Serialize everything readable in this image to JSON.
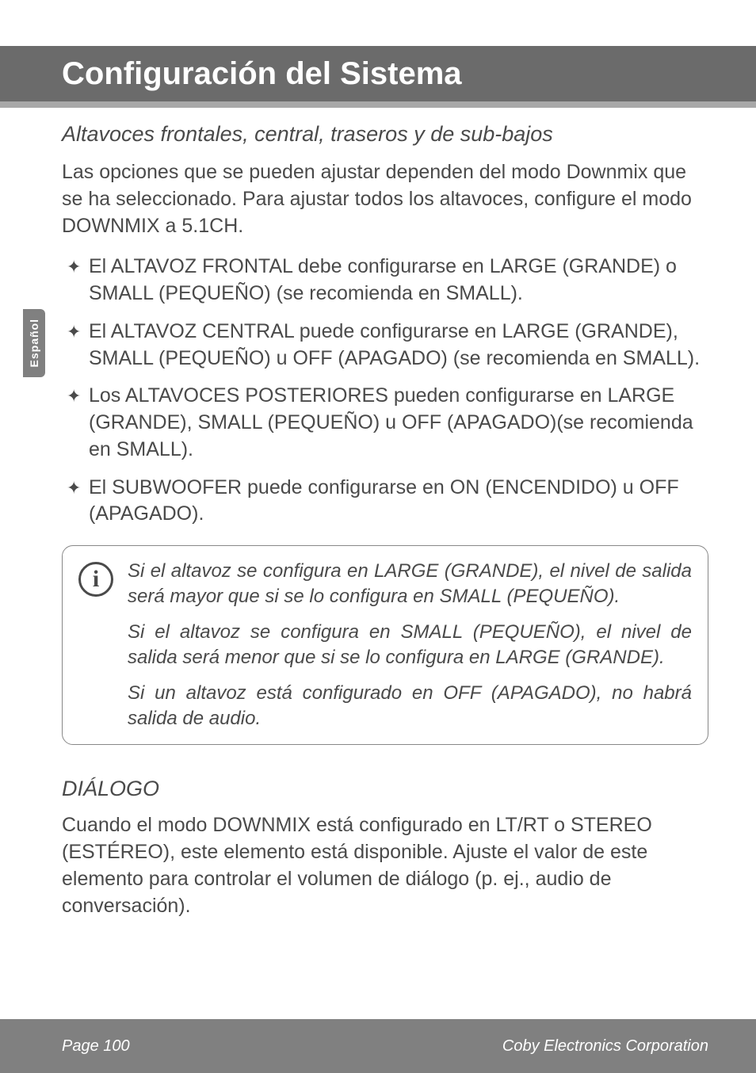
{
  "colors": {
    "header_bg": "#6b6b6b",
    "header_underline": "#a8a8a8",
    "side_tab_bg": "#808080",
    "footer_bg": "#808080",
    "text": "#4a4a4a",
    "white": "#ffffff",
    "info_border": "#888888"
  },
  "typography": {
    "header_title_size": 40,
    "subtitle_size": 27,
    "body_size": 25,
    "info_size": 24,
    "footer_size": 20,
    "side_tab_size": 14
  },
  "header": {
    "title": "Configuración del Sistema"
  },
  "side_tab": {
    "label": "Español"
  },
  "section1": {
    "subtitle": "Altavoces frontales, central, traseros y de sub-bajos",
    "intro": "Las opciones que se pueden ajustar dependen del modo Downmix que se ha seleccionado. Para ajustar todos los altavoces, configure el modo DOWNMIX a 5.1CH.",
    "bullets": [
      "El ALTAVOZ FRONTAL debe configurarse en LARGE (GRANDE) o SMALL (PEQUEÑO) (se recomienda en SMALL).",
      "El ALTAVOZ CENTRAL puede configurarse en LARGE (GRANDE), SMALL (PEQUEÑO) u OFF (APAGADO) (se recomienda en SMALL).",
      "Los ALTAVOCES POSTERIORES pueden configurarse en LARGE (GRANDE), SMALL (PEQUEÑO) u OFF (APAGADO)(se recomienda en SMALL).",
      "El SUBWOOFER puede configurarse en ON (ENCENDIDO) u OFF (APAGADO)."
    ]
  },
  "info_box": {
    "icon_glyph": "i",
    "paragraphs": [
      "Si el altavoz se configura en LARGE (GRANDE), el nivel de salida será mayor que si se lo configura en SMALL (PEQUEÑO).",
      "Si el altavoz se configura en SMALL (PEQUEÑO), el nivel de salida será menor que si se lo configura en LARGE (GRANDE).",
      "Si un altavoz está configurado en OFF (APAGADO), no habrá salida de audio."
    ]
  },
  "section2": {
    "title": "DIÁLOGO",
    "body": "Cuando el modo DOWNMIX está configurado en LT/RT o STEREO (ESTÉREO), este elemento está disponible. Ajuste el valor de este elemento para controlar el volumen de diálogo (p. ej., audio de conversación)."
  },
  "footer": {
    "left": "Page 100",
    "right": "Coby Electronics Corporation"
  },
  "bullet_glyph": "✦"
}
